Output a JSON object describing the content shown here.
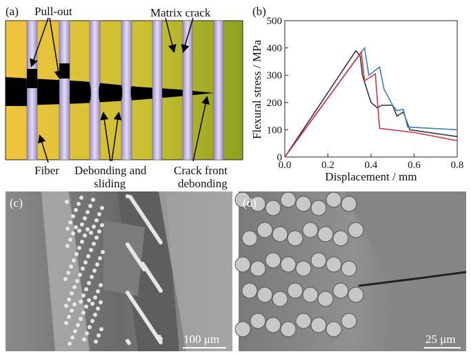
{
  "panel_a": {
    "label": "(a)",
    "pull_out": "Pull-out",
    "matrix_crack": "Matrix crack",
    "fiber": "Fiber",
    "debonding": [
      "Debonding and",
      "sliding"
    ],
    "crack_front": [
      "Crack front",
      "debonding"
    ]
  },
  "chart_data": {
    "type": "line",
    "panel_label": "(b)",
    "xlabel": "Displacement / mm",
    "ylabel": "Flexural stress / MPa",
    "xlim": [
      0,
      0.8
    ],
    "ylim": [
      0,
      500
    ],
    "xticks": [
      {
        "value": 0,
        "label": "0.0"
      },
      0.2,
      0.4,
      0.6,
      0.8
    ],
    "yticks": [
      0,
      100,
      200,
      300,
      400,
      500
    ],
    "series": [
      {
        "color": "#333333",
        "x": [
          0,
          0.33,
          0.35,
          0.36,
          0.4,
          0.43,
          0.45,
          0.5,
          0.52,
          0.55,
          0.58,
          0.8
        ],
        "values": [
          0,
          390,
          370,
          300,
          200,
          180,
          190,
          190,
          150,
          165,
          100,
          75
        ]
      },
      {
        "color": "#3a7fc0",
        "x": [
          0,
          0.37,
          0.39,
          0.44,
          0.46,
          0.5,
          0.52,
          0.55,
          0.57,
          0.8
        ],
        "values": [
          0,
          400,
          300,
          330,
          250,
          190,
          170,
          175,
          110,
          100
        ]
      },
      {
        "color": "#e03040",
        "x": [
          0,
          0.355,
          0.37,
          0.42,
          0.44,
          0.6,
          0.8
        ],
        "values": [
          0,
          385,
          280,
          305,
          105,
          90,
          60
        ]
      }
    ]
  },
  "panel_c": {
    "label": "(c)",
    "scale": "100 μm"
  },
  "panel_d": {
    "label": "(d)",
    "scale": "25 μm"
  }
}
